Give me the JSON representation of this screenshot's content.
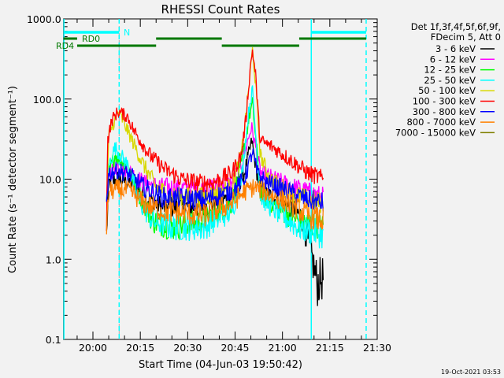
{
  "chart_data": {
    "type": "line",
    "title": "RHESSI Count Rates",
    "xlabel": "Start Time (04-Jun-03 19:50:42)",
    "ylabel": "Count Rate (s⁻¹ detector segment⁻¹)",
    "x_units": "minutes after 20:00 UT",
    "xlim": [
      -9.3,
      90
    ],
    "ylim": [
      0.1,
      1000
    ],
    "yscale": "log",
    "x_ticks": [
      {
        "x": 0,
        "label": "20:00"
      },
      {
        "x": 15,
        "label": "20:15"
      },
      {
        "x": 30,
        "label": "20:30"
      },
      {
        "x": 45,
        "label": "20:45"
      },
      {
        "x": 60,
        "label": "21:00"
      },
      {
        "x": 75,
        "label": "21:15"
      },
      {
        "x": 90,
        "label": "21:30"
      }
    ],
    "y_ticks": [
      {
        "y": 1000,
        "label": "1000.0"
      },
      {
        "y": 100,
        "label": "100.0"
      },
      {
        "y": 10,
        "label": "10.0"
      },
      {
        "y": 1,
        "label": "1.0"
      },
      {
        "y": 0.1,
        "label": "0.1"
      }
    ],
    "legend": {
      "placement": "right",
      "header": [
        "Det 1f,3f,4f,5f,6f,9f,",
        "FDecim 5, Att 0"
      ]
    },
    "series": [
      {
        "name": "3 - 6 keV",
        "color": "#000000",
        "points": [
          [
            4.3,
            2
          ],
          [
            5,
            9
          ],
          [
            8,
            10
          ],
          [
            12,
            9
          ],
          [
            16,
            6
          ],
          [
            22,
            4.5
          ],
          [
            35,
            4.5
          ],
          [
            44,
            6
          ],
          [
            48,
            12
          ],
          [
            50.3,
            30
          ],
          [
            51.5,
            15
          ],
          [
            53,
            7
          ],
          [
            60,
            5
          ],
          [
            66,
            3.5
          ],
          [
            69,
            1.2
          ],
          [
            71,
            0.5
          ],
          [
            73,
            0.6
          ]
        ]
      },
      {
        "name": "6 - 12 keV",
        "color": "#ff00ff",
        "points": [
          [
            4.3,
            5
          ],
          [
            5,
            12
          ],
          [
            8,
            15
          ],
          [
            12,
            12
          ],
          [
            16,
            9
          ],
          [
            22,
            8
          ],
          [
            35,
            7.5
          ],
          [
            44,
            9
          ],
          [
            47,
            15
          ],
          [
            50.2,
            45
          ],
          [
            51.5,
            25
          ],
          [
            53,
            12
          ],
          [
            60,
            9
          ],
          [
            68,
            7
          ],
          [
            73,
            6
          ]
        ]
      },
      {
        "name": "12 - 25 keV",
        "color": "#00ff00",
        "points": [
          [
            4.3,
            5
          ],
          [
            5,
            12
          ],
          [
            7,
            20
          ],
          [
            11,
            15
          ],
          [
            15,
            6
          ],
          [
            19,
            3
          ],
          [
            25,
            2.5
          ],
          [
            35,
            3
          ],
          [
            44,
            5
          ],
          [
            47,
            15
          ],
          [
            49.5,
            60
          ],
          [
            50.5,
            90
          ],
          [
            52,
            20
          ],
          [
            53,
            7
          ],
          [
            58,
            4.5
          ],
          [
            65,
            3
          ],
          [
            73,
            2.5
          ]
        ]
      },
      {
        "name": "25 - 50 keV",
        "color": "#00ffff",
        "points": [
          [
            4.3,
            5
          ],
          [
            5,
            15
          ],
          [
            7,
            25
          ],
          [
            11,
            15
          ],
          [
            15,
            5
          ],
          [
            19,
            3
          ],
          [
            25,
            2.5
          ],
          [
            35,
            2.5
          ],
          [
            44,
            4
          ],
          [
            47,
            10
          ],
          [
            49.5,
            80
          ],
          [
            50.5,
            130
          ],
          [
            52,
            20
          ],
          [
            53,
            6
          ],
          [
            58,
            4
          ],
          [
            65,
            2.5
          ],
          [
            73,
            2
          ]
        ]
      },
      {
        "name": "50 - 100 keV",
        "color": "#d8d800",
        "points": [
          [
            4.3,
            4
          ],
          [
            5,
            35
          ],
          [
            8,
            70
          ],
          [
            11,
            40
          ],
          [
            16,
            15
          ],
          [
            20,
            8
          ],
          [
            25,
            6
          ],
          [
            35,
            6
          ],
          [
            44,
            8
          ],
          [
            47,
            20
          ],
          [
            49,
            100
          ],
          [
            50.5,
            420
          ],
          [
            51.5,
            150
          ],
          [
            53,
            20
          ],
          [
            56,
            10
          ],
          [
            62,
            7
          ],
          [
            68,
            5.5
          ],
          [
            73,
            5
          ]
        ]
      },
      {
        "name": "100 - 300 keV",
        "color": "#ff0000",
        "points": [
          [
            4.3,
            3
          ],
          [
            4.6,
            30
          ],
          [
            6,
            55
          ],
          [
            8,
            70
          ],
          [
            11,
            60
          ],
          [
            13,
            40
          ],
          [
            18,
            20
          ],
          [
            23,
            13
          ],
          [
            28,
            10
          ],
          [
            33,
            9
          ],
          [
            38,
            9
          ],
          [
            44,
            12
          ],
          [
            47,
            20
          ],
          [
            48.5,
            60
          ],
          [
            50,
            300
          ],
          [
            50.5,
            400
          ],
          [
            51.5,
            200
          ],
          [
            52.5,
            50
          ],
          [
            53,
            30
          ],
          [
            57,
            25
          ],
          [
            62,
            18
          ],
          [
            68,
            12
          ],
          [
            73,
            10
          ]
        ]
      },
      {
        "name": "300 - 800 keV",
        "color": "#0000ff",
        "points": [
          [
            4.3,
            6
          ],
          [
            5,
            12
          ],
          [
            8,
            13
          ],
          [
            12,
            11
          ],
          [
            16,
            8
          ],
          [
            22,
            6
          ],
          [
            35,
            5.5
          ],
          [
            44,
            7
          ],
          [
            48,
            10
          ],
          [
            50.5,
            22
          ],
          [
            52,
            12
          ],
          [
            55,
            9
          ],
          [
            62,
            7
          ],
          [
            68,
            5.5
          ],
          [
            73,
            5
          ]
        ]
      },
      {
        "name": "800 - 7000 keV",
        "color": "#ff8000",
        "points": [
          [
            4.3,
            2
          ],
          [
            5,
            7
          ],
          [
            8,
            7.5
          ],
          [
            12,
            7
          ],
          [
            16,
            5
          ],
          [
            22,
            4
          ],
          [
            35,
            3.5
          ],
          [
            44,
            5
          ],
          [
            48,
            7
          ],
          [
            51,
            8
          ],
          [
            54,
            7
          ],
          [
            62,
            5
          ],
          [
            68,
            3.5
          ],
          [
            73,
            3
          ]
        ]
      },
      {
        "name": "7000 - 15000 keV",
        "color": "#808000",
        "points": []
      }
    ],
    "annotations": {
      "cyan_top_bars": [
        [
          -9.3,
          8.3
        ],
        [
          69,
          86.5
        ]
      ],
      "cyan_top_label": "N",
      "rd0_bars": [
        [
          -9.3,
          -5
        ],
        [
          20,
          40.8
        ],
        [
          65.3,
          86.5
        ]
      ],
      "rd0_label": "RD0",
      "rd4_bars": [
        [
          -5,
          20
        ],
        [
          40.8,
          65.3
        ]
      ],
      "rd4_label": "RD4",
      "cyan_solid_lines": [
        -9.3,
        69
      ],
      "cyan_dashed_lines": [
        8.3,
        86.5
      ],
      "grey_dashed_lines": [
        8.3
      ]
    }
  },
  "footer": {
    "timestamp": "19-Oct-2021 03:53"
  }
}
